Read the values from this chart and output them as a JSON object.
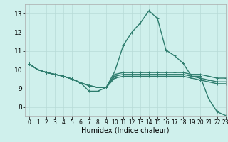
{
  "title": "",
  "xlabel": "Humidex (Indice chaleur)",
  "bg_color": "#cff0ec",
  "line_color": "#2e7d6e",
  "grid_color": "#b8dbd7",
  "xlim": [
    -0.5,
    23
  ],
  "ylim": [
    7.5,
    13.5
  ],
  "yticks": [
    8,
    9,
    10,
    11,
    12,
    13
  ],
  "xticks": [
    0,
    1,
    2,
    3,
    4,
    5,
    6,
    7,
    8,
    9,
    10,
    11,
    12,
    13,
    14,
    15,
    16,
    17,
    18,
    19,
    20,
    21,
    22,
    23
  ],
  "series": [
    [
      10.3,
      10.0,
      9.85,
      9.75,
      9.65,
      9.5,
      9.3,
      8.85,
      8.85,
      9.05,
      9.9,
      11.3,
      12.0,
      12.5,
      13.15,
      12.75,
      11.05,
      10.75,
      10.35,
      9.65,
      9.65,
      8.45,
      7.75,
      7.55
    ],
    [
      10.3,
      10.0,
      9.85,
      9.75,
      9.65,
      9.5,
      9.3,
      9.15,
      9.05,
      9.05,
      9.75,
      9.85,
      9.85,
      9.85,
      9.85,
      9.85,
      9.85,
      9.85,
      9.85,
      9.75,
      9.75,
      9.65,
      9.55,
      9.55
    ],
    [
      10.3,
      10.0,
      9.85,
      9.75,
      9.65,
      9.5,
      9.3,
      9.15,
      9.05,
      9.05,
      9.65,
      9.75,
      9.75,
      9.75,
      9.75,
      9.75,
      9.75,
      9.75,
      9.75,
      9.65,
      9.55,
      9.45,
      9.35,
      9.35
    ],
    [
      10.3,
      10.0,
      9.85,
      9.75,
      9.65,
      9.5,
      9.3,
      9.15,
      9.05,
      9.05,
      9.55,
      9.65,
      9.65,
      9.65,
      9.65,
      9.65,
      9.65,
      9.65,
      9.65,
      9.55,
      9.45,
      9.35,
      9.25,
      9.25
    ]
  ]
}
